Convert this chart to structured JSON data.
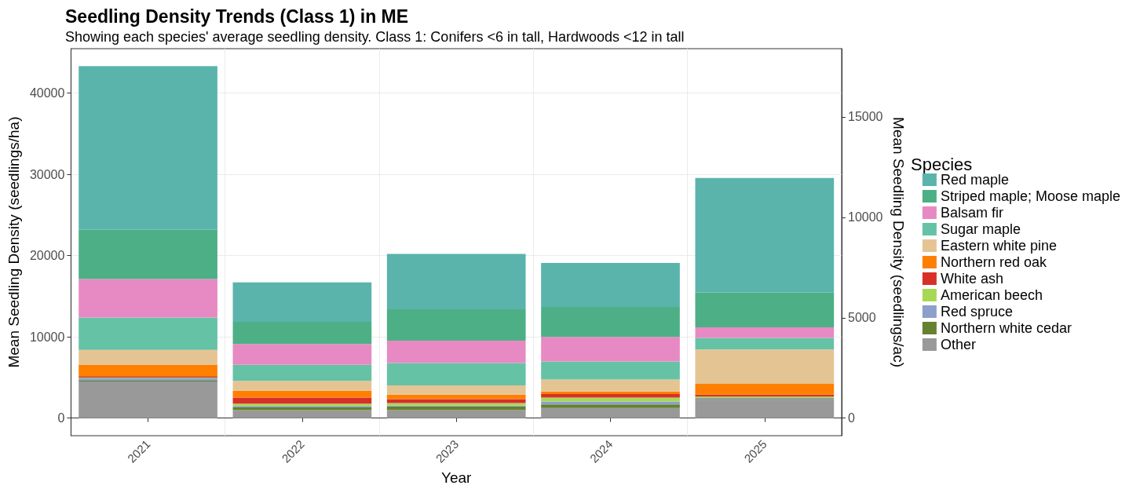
{
  "chart_data": {
    "type": "bar",
    "stacked": true,
    "title": "Seedling Density Trends (Class 1) in ME",
    "subtitle": "Showing each species' average seedling density. Class 1: Conifers <6 in tall, Hardwoods <12 in tall",
    "xlabel": "Year",
    "ylabel": "Mean Seedling Density (seedlings/ha)",
    "y2label": "Mean Seedling Density (seedlings/ac)",
    "legend_title": "Species",
    "legend": "right",
    "grid": true,
    "categories": [
      "2021",
      "2022",
      "2023",
      "2024",
      "2025"
    ],
    "ylim": [
      -2165,
      45465
    ],
    "yticks": [
      0,
      10000,
      20000,
      30000,
      40000
    ],
    "y2lim": [
      -876,
      18400
    ],
    "y2ticks": [
      0,
      5000,
      10000,
      15000
    ],
    "series": [
      {
        "name": "Other",
        "color": "#999999",
        "values": [
          4500,
          990,
          990,
          1240,
          2270
        ]
      },
      {
        "name": "Northern white cedar",
        "color": "#66812f",
        "values": [
          100,
          320,
          470,
          450,
          100
        ]
      },
      {
        "name": "Red spruce",
        "color": "#8da0cb",
        "values": [
          300,
          190,
          100,
          350,
          120
        ]
      },
      {
        "name": "American beech",
        "color": "#a6d854",
        "values": [
          100,
          290,
          290,
          480,
          150
        ]
      },
      {
        "name": "White ash",
        "color": "#d73027",
        "values": [
          150,
          730,
          480,
          450,
          250
        ]
      },
      {
        "name": "Northern red oak",
        "color": "#ff7f00",
        "values": [
          1430,
          860,
          570,
          310,
          1340
        ]
      },
      {
        "name": "Eastern white pine",
        "color": "#e5c494",
        "values": [
          1820,
          1210,
          1120,
          1480,
          4210
        ]
      },
      {
        "name": "Sugar maple",
        "color": "#66c2a5",
        "values": [
          3980,
          1980,
          2770,
          2200,
          1440
        ]
      },
      {
        "name": "Balsam fir",
        "color": "#e78ac3",
        "values": [
          4730,
          2550,
          2750,
          3020,
          1300
        ]
      },
      {
        "name": "Striped maple; Moose maple",
        "color": "#4daf86",
        "values": [
          6060,
          2720,
          3860,
          3700,
          4280
        ]
      },
      {
        "name": "Red maple",
        "color": "#5ab4ac",
        "values": [
          20140,
          4860,
          6800,
          5420,
          14090
        ]
      }
    ]
  }
}
